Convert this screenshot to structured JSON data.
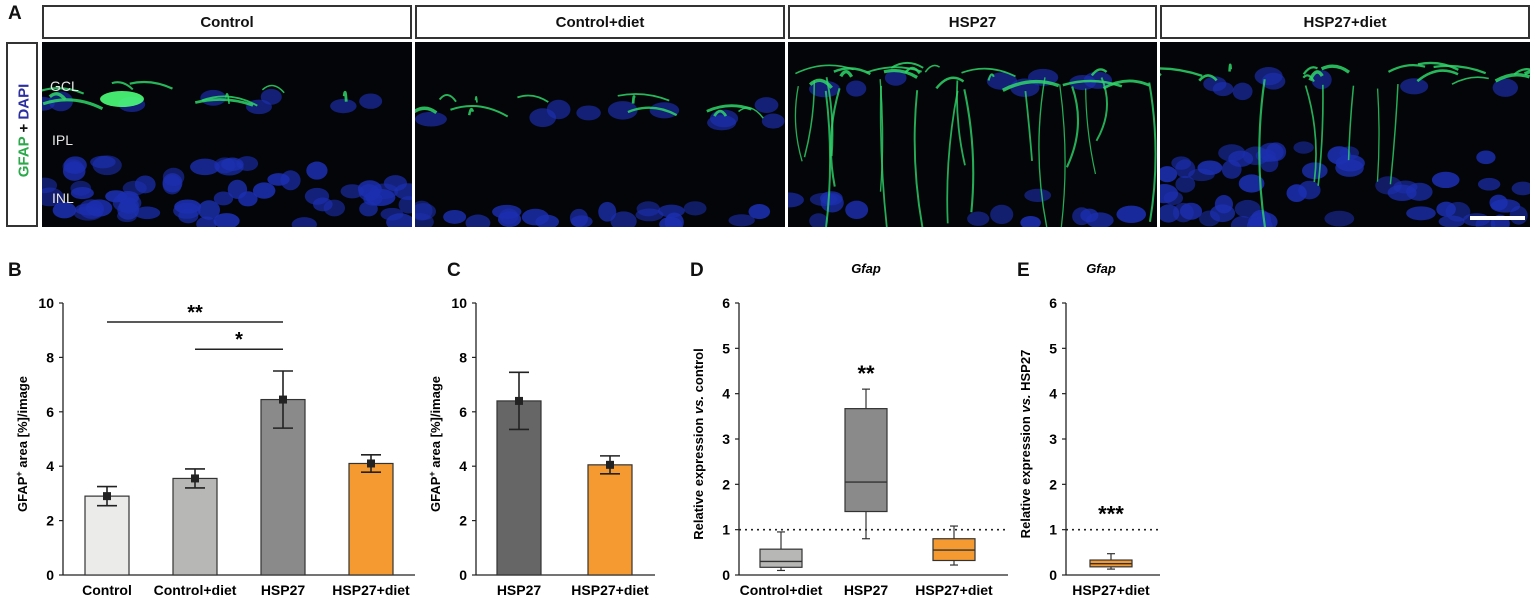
{
  "panel_a": {
    "letter": "A",
    "side_label": {
      "part1": "GFAP",
      "part2": " + ",
      "part3": "DAPI"
    },
    "layers": [
      "GCL",
      "IPL",
      "INL"
    ],
    "titles": [
      "Control",
      "Control+diet",
      "HSP27",
      "HSP27+diet"
    ],
    "colors": {
      "gfap": "#2fd66a",
      "dapi": "#1c2fb0",
      "background": "#030508"
    }
  },
  "chart_data": [
    {
      "panel": "B",
      "type": "bar",
      "categories": [
        "Control",
        "Control+diet",
        "HSP27",
        "HSP27+diet"
      ],
      "values": [
        2.9,
        3.55,
        6.45,
        4.1
      ],
      "error": [
        0.35,
        0.35,
        1.05,
        0.32
      ],
      "colors": [
        "#ebecea",
        "#b7b8b6",
        "#8a8a8a",
        "#f59a31"
      ],
      "ylabel_main": "GFAP",
      "ylabel_sup": "+",
      "ylabel_rest": " area [%]/image",
      "ylim": [
        0,
        10
      ],
      "yticks": [
        "0",
        "2",
        "4",
        "6",
        "8",
        "10"
      ],
      "significance": [
        {
          "from": "Control",
          "to": "HSP27",
          "label": "**"
        },
        {
          "from": "Control+diet",
          "to": "HSP27",
          "label": "*"
        }
      ]
    },
    {
      "panel": "C",
      "type": "bar",
      "categories": [
        "HSP27",
        "HSP27+diet"
      ],
      "values": [
        6.4,
        4.05
      ],
      "error": [
        1.05,
        0.33
      ],
      "colors": [
        "#666666",
        "#f59a31"
      ],
      "ylabel_main": "GFAP",
      "ylabel_sup": "+",
      "ylabel_rest": " area [%]/image",
      "ylim": [
        0,
        10
      ],
      "yticks": [
        "0",
        "2",
        "4",
        "6",
        "8",
        "10"
      ]
    },
    {
      "panel": "D",
      "type": "box",
      "title": "Gfap",
      "categories": [
        "Control+diet",
        "HSP27",
        "HSP27+diet"
      ],
      "boxes": [
        {
          "min": 0.1,
          "q1": 0.17,
          "median": 0.3,
          "q3": 0.57,
          "max": 0.95
        },
        {
          "min": 0.8,
          "q1": 1.4,
          "median": 2.05,
          "q3": 3.67,
          "max": 4.1
        },
        {
          "min": 0.22,
          "q1": 0.32,
          "median": 0.55,
          "q3": 0.8,
          "max": 1.08
        }
      ],
      "colors": [
        "#b7b8b6",
        "#8a8a8a",
        "#f59a31"
      ],
      "ylabel_parts": [
        "Relative expression ",
        "vs.",
        " control"
      ],
      "ylim": [
        0,
        6
      ],
      "yticks": [
        "0",
        "1",
        "2",
        "3",
        "4",
        "5",
        "6"
      ],
      "reference_line": 1,
      "annotations": [
        {
          "category": "HSP27",
          "label": "**"
        }
      ]
    },
    {
      "panel": "E",
      "type": "box",
      "title": "Gfap",
      "categories": [
        "HSP27+diet"
      ],
      "boxes": [
        {
          "min": 0.13,
          "q1": 0.18,
          "median": 0.25,
          "q3": 0.33,
          "max": 0.47
        }
      ],
      "colors": [
        "#f59a31"
      ],
      "ylabel_parts": [
        "Relative expression ",
        "vs.",
        " HSP27"
      ],
      "ylim": [
        0,
        6
      ],
      "yticks": [
        "0",
        "1",
        "2",
        "3",
        "4",
        "5",
        "6"
      ],
      "reference_line": 1,
      "annotations": [
        {
          "category": "HSP27+diet",
          "label": "***"
        }
      ]
    }
  ]
}
